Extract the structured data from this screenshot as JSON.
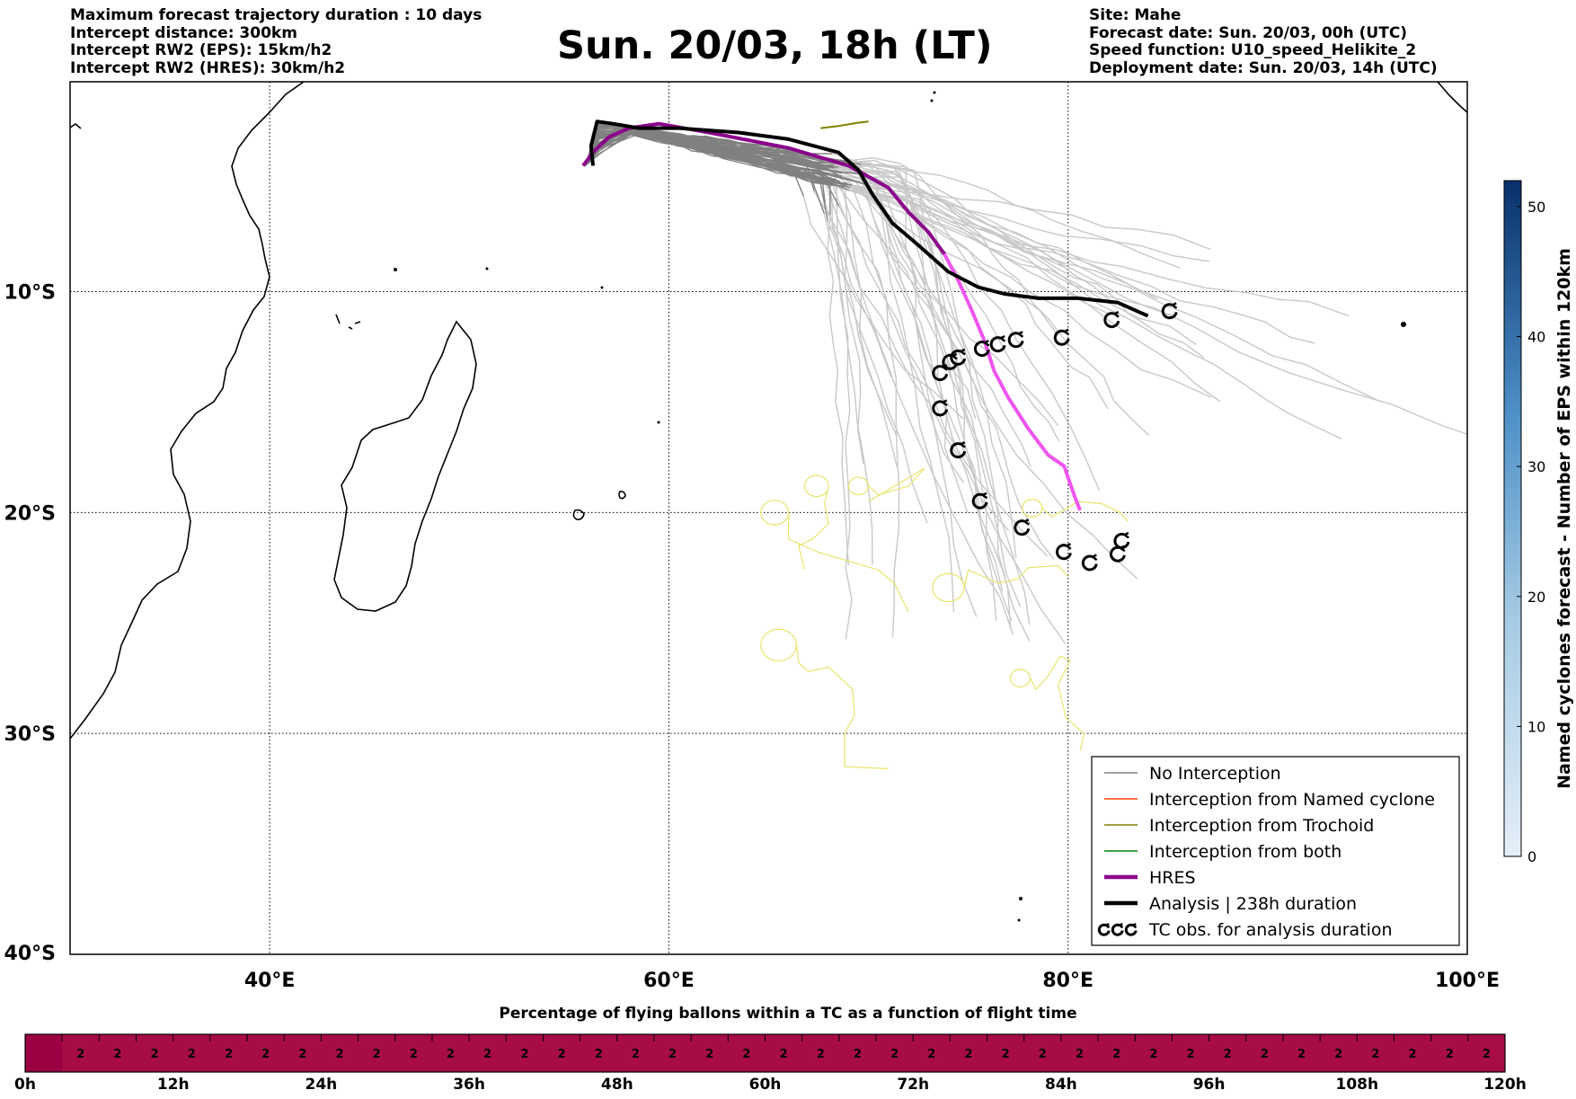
{
  "header": {
    "left_lines": [
      "Maximum forecast trajectory duration : 10 days",
      "Intercept distance: 300km",
      "Intercept RW2 (EPS):  15km/h2",
      "Intercept RW2 (HRES): 30km/h2"
    ],
    "title": "Sun. 20/03, 18h (LT)",
    "right_lines": [
      "Site: Mahe",
      "Forecast date: Sun. 20/03, 00h (UTC)",
      "Speed function: U10_speed_Helikite_2",
      "Deployment date: Sun. 20/03, 14h (UTC)"
    ]
  },
  "chart_data": [
    {
      "type": "line",
      "xlim": [
        30,
        100
      ],
      "ylim": [
        -40,
        -0.5
      ],
      "x_ticks": [
        {
          "value": 40,
          "label": "40°E"
        },
        {
          "value": 60,
          "label": "60°E"
        },
        {
          "value": 80,
          "label": "80°E"
        },
        {
          "value": 100,
          "label": "100°E"
        }
      ],
      "y_ticks": [
        {
          "value": -10,
          "label": "10°S"
        },
        {
          "value": -20,
          "label": "20°S"
        },
        {
          "value": -30,
          "label": "30°S"
        },
        {
          "value": -40,
          "label": "40°S"
        }
      ],
      "grid": true,
      "series": [
        {
          "name": "HRES",
          "color": "#8b008b",
          "color_late": "#ee55ee",
          "x": [
            55.7,
            56.3,
            57.0,
            58.0,
            59.5,
            62,
            66,
            69,
            71,
            72,
            73,
            73.8,
            74.5,
            75.2,
            75.8,
            76.3,
            77,
            78,
            79,
            79.8,
            80.3,
            80.6
          ],
          "y": [
            -4.3,
            -3.6,
            -3.0,
            -2.6,
            -2.4,
            -2.8,
            -3.5,
            -4.3,
            -5.3,
            -6.4,
            -7.3,
            -8.3,
            -9.5,
            -10.9,
            -12.2,
            -13.6,
            -14.8,
            -16.2,
            -17.4,
            -17.9,
            -19.2,
            -19.9
          ]
        },
        {
          "name": "Analysis | 238h duration",
          "color": "#000000",
          "x": [
            56.2,
            56.1,
            56.4,
            57.2,
            58.5,
            60.5,
            63.5,
            66,
            68.5,
            69.5,
            70.2,
            71.2,
            72.5,
            74,
            75.5,
            76.8,
            78.5,
            80.5,
            82.5,
            84
          ],
          "y": [
            -4.3,
            -3.4,
            -2.3,
            -2.4,
            -2.6,
            -2.6,
            -2.8,
            -3.1,
            -3.7,
            -4.5,
            -5.6,
            -6.9,
            -7.9,
            -9.1,
            -9.8,
            -10.1,
            -10.3,
            -10.3,
            -10.5,
            -11.1
          ]
        },
        {
          "name": "Interception from Trochoid",
          "color": "#808000",
          "x": [
            67.6,
            68.5,
            69.5,
            70.0
          ],
          "y": [
            -2.6,
            -2.5,
            -2.35,
            -2.3
          ]
        }
      ],
      "tc_obs": [
        {
          "x": 73.6,
          "y": -13.7
        },
        {
          "x": 74.1,
          "y": -13.2
        },
        {
          "x": 74.5,
          "y": -13.0
        },
        {
          "x": 75.7,
          "y": -12.6
        },
        {
          "x": 76.5,
          "y": -12.4
        },
        {
          "x": 77.4,
          "y": -12.2
        },
        {
          "x": 79.7,
          "y": -12.1
        },
        {
          "x": 82.2,
          "y": -11.3
        },
        {
          "x": 85.1,
          "y": -10.9
        },
        {
          "x": 73.6,
          "y": -15.3
        },
        {
          "x": 74.5,
          "y": -17.2
        },
        {
          "x": 75.6,
          "y": -19.5
        },
        {
          "x": 77.7,
          "y": -20.7
        },
        {
          "x": 79.8,
          "y": -21.8
        },
        {
          "x": 81.1,
          "y": -22.3
        },
        {
          "x": 82.5,
          "y": -21.9
        },
        {
          "x": 82.7,
          "y": -21.3
        }
      ],
      "legend": {
        "position": "lower-right",
        "items": [
          {
            "label": "No Interception",
            "color": "#808080",
            "kind": "line-thin"
          },
          {
            "label": "Interception from Named cyclone",
            "color": "#ff4500",
            "kind": "line-thin"
          },
          {
            "label": "Interception from Trochoid",
            "color": "#808000",
            "kind": "line-thin"
          },
          {
            "label": "Interception from both",
            "color": "#008000",
            "kind": "line-thin"
          },
          {
            "label": "HRES",
            "color": "#8b008b",
            "kind": "line-thick"
          },
          {
            "label": "Analysis | 238h duration",
            "color": "#000000",
            "kind": "line-thick"
          },
          {
            "label": "TC obs. for analysis duration",
            "color": "#000000",
            "kind": "tc-symbol"
          }
        ]
      },
      "colors": {
        "no_interception": "#808080",
        "eps_far": "#c8c8c8",
        "yellow": "#e8e46a"
      }
    },
    {
      "type": "heatmap",
      "ylabel": "Named cyclones forecast - Number of EPS within 120km",
      "range": [
        0,
        52
      ],
      "ticks": [
        0,
        10,
        20,
        30,
        40,
        50
      ],
      "colors": {
        "low": "#e4eef8",
        "high": "#08306b"
      }
    },
    {
      "type": "bar",
      "title": "Percentage of flying ballons within a TC as a function of flight time",
      "x_labels": [
        "0h",
        "12h",
        "24h",
        "36h",
        "48h",
        "60h",
        "72h",
        "84h",
        "96h",
        "108h",
        "120h"
      ],
      "cells": 40,
      "first_cell_empty": true,
      "values": [
        0,
        2,
        2,
        2,
        2,
        2,
        2,
        2,
        2,
        2,
        2,
        2,
        2,
        2,
        2,
        2,
        2,
        2,
        2,
        2,
        2,
        2,
        2,
        2,
        2,
        2,
        2,
        2,
        2,
        2,
        2,
        2,
        2,
        2,
        2,
        2,
        2,
        2,
        2,
        2
      ],
      "colors": {
        "first": "#9c0042",
        "rest": "#a80c46"
      }
    }
  ]
}
